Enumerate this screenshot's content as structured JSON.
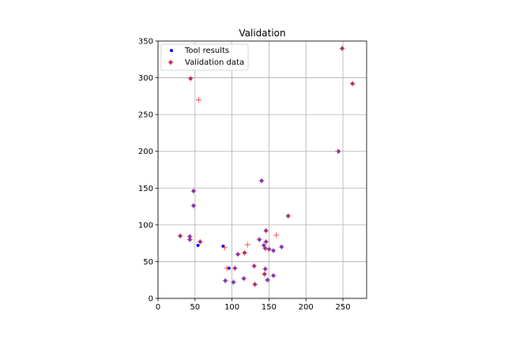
{
  "chart_data": {
    "type": "scatter",
    "title": "Validation",
    "xlabel": "",
    "ylabel": "",
    "xlim": [
      0,
      282
    ],
    "ylim": [
      0,
      350
    ],
    "x_ticks": [
      0,
      50,
      100,
      150,
      200,
      250
    ],
    "y_ticks": [
      0,
      50,
      100,
      150,
      200,
      250,
      300,
      350
    ],
    "grid": true,
    "legend_position": "upper-left",
    "series": [
      {
        "name": "Tool results",
        "marker": "dot",
        "color": "#0000ff",
        "points": [
          [
            249,
            340
          ],
          [
            44,
            299
          ],
          [
            263,
            292
          ],
          [
            244,
            200
          ],
          [
            140,
            160
          ],
          [
            48,
            146
          ],
          [
            48,
            126
          ],
          [
            176,
            112
          ],
          [
            146,
            92
          ],
          [
            30,
            85
          ],
          [
            43,
            84
          ],
          [
            43,
            80
          ],
          [
            137,
            80
          ],
          [
            57,
            77
          ],
          [
            146,
            77
          ],
          [
            143,
            72
          ],
          [
            88,
            71
          ],
          [
            145,
            68
          ],
          [
            150,
            67
          ],
          [
            156,
            65
          ],
          [
            167,
            70
          ],
          [
            117,
            62
          ],
          [
            108,
            60
          ],
          [
            54,
            72
          ],
          [
            130,
            44
          ],
          [
            96,
            41
          ],
          [
            104,
            41
          ],
          [
            145,
            40
          ],
          [
            144,
            33
          ],
          [
            156,
            31
          ],
          [
            116,
            27
          ],
          [
            91,
            24
          ],
          [
            102,
            22
          ],
          [
            148,
            25
          ],
          [
            131,
            19
          ]
        ]
      },
      {
        "name": "Validation data",
        "marker": "plus",
        "color": "#ff4444",
        "points": [
          [
            249,
            340
          ],
          [
            44,
            299
          ],
          [
            55,
            270
          ],
          [
            263,
            292
          ],
          [
            243,
            200
          ],
          [
            140,
            160
          ],
          [
            48,
            146
          ],
          [
            48,
            126
          ],
          [
            176,
            112
          ],
          [
            146,
            92
          ],
          [
            30,
            85
          ],
          [
            43,
            84
          ],
          [
            43,
            80
          ],
          [
            137,
            80
          ],
          [
            57,
            77
          ],
          [
            146,
            77
          ],
          [
            160,
            86
          ],
          [
            121,
            73
          ],
          [
            143,
            72
          ],
          [
            90,
            69
          ],
          [
            145,
            68
          ],
          [
            150,
            67
          ],
          [
            156,
            65
          ],
          [
            167,
            70
          ],
          [
            117,
            62
          ],
          [
            108,
            60
          ],
          [
            130,
            44
          ],
          [
            93,
            41
          ],
          [
            104,
            41
          ],
          [
            145,
            40
          ],
          [
            144,
            33
          ],
          [
            156,
            31
          ],
          [
            116,
            27
          ],
          [
            91,
            24
          ],
          [
            102,
            22
          ],
          [
            148,
            25
          ],
          [
            131,
            19
          ]
        ]
      }
    ]
  }
}
